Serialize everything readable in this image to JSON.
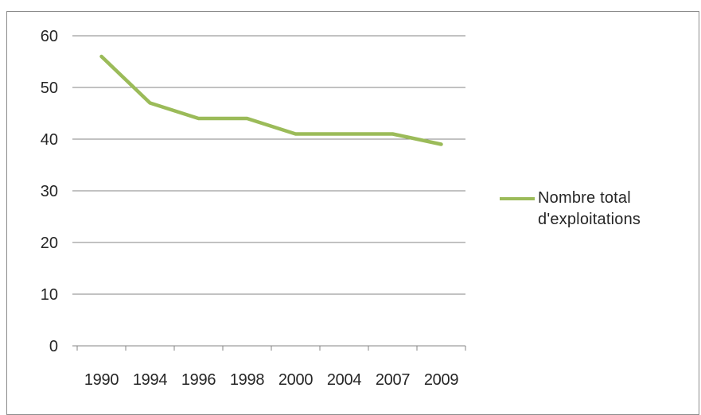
{
  "chart_data": {
    "type": "line",
    "categories": [
      "1990",
      "1994",
      "1996",
      "1998",
      "2000",
      "2004",
      "2007",
      "2009"
    ],
    "series": [
      {
        "name": "Nombre total d'exploitations",
        "values": [
          56,
          47,
          44,
          44,
          41,
          41,
          41,
          39
        ],
        "color": "#9bbb59"
      }
    ],
    "y_ticks": [
      0,
      10,
      20,
      30,
      40,
      50,
      60
    ],
    "ylim": [
      0,
      60
    ],
    "grid": true,
    "legend_position": "right",
    "gridline_color": "#868686",
    "axis_color": "#868686"
  }
}
